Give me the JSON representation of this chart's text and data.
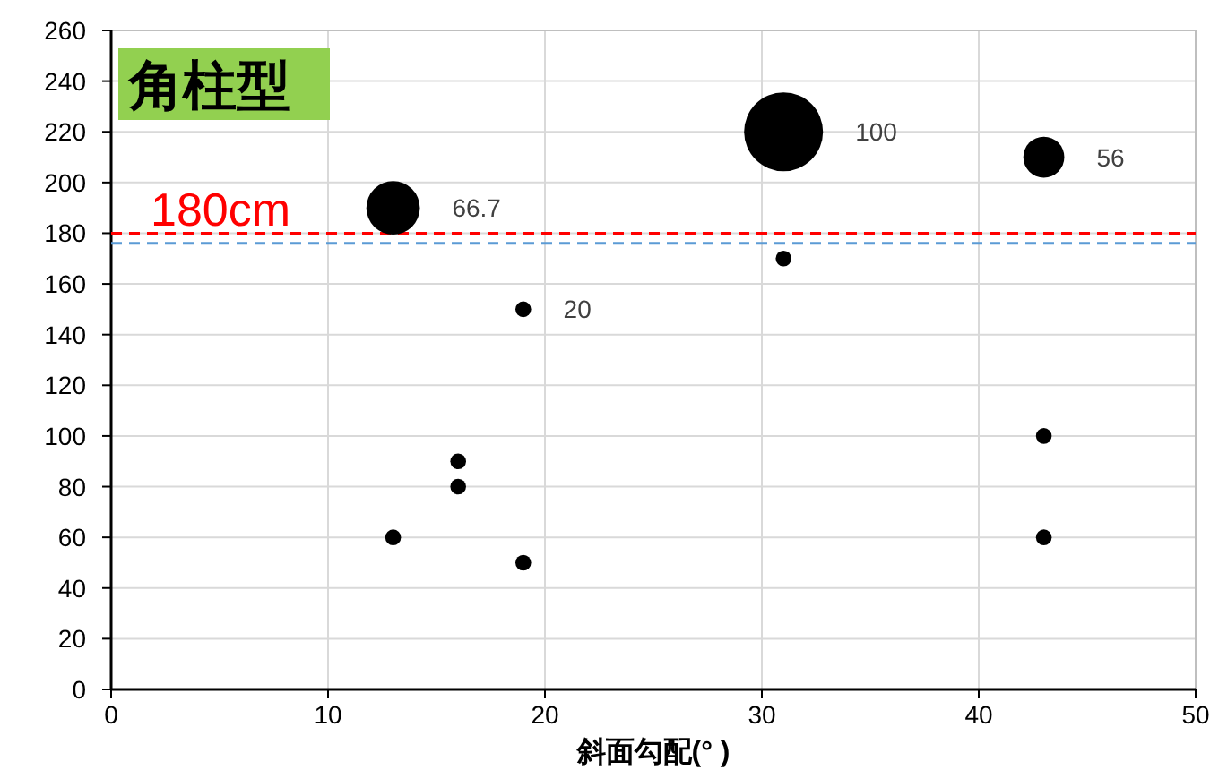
{
  "chart_data": {
    "type": "bubble",
    "title": "角柱型",
    "xlabel": "斜面勾配(°  )",
    "x": [
      13,
      13,
      16,
      16,
      19,
      19,
      31,
      31,
      43,
      43,
      43
    ],
    "values": [
      190,
      60,
      90,
      80,
      150,
      50,
      220,
      170,
      210,
      100,
      60
    ],
    "sizes": [
      0.46,
      0.04,
      0.04,
      0.04,
      0.04,
      0.04,
      1,
      0.04,
      0.27,
      0.04,
      0.04
    ],
    "annotations": [
      {
        "text": "66.7",
        "x": 13,
        "y": 190
      },
      {
        "text": "20",
        "x": 19,
        "y": 150
      },
      {
        "text": "100",
        "x": 31,
        "y": 220
      },
      {
        "text": "56",
        "x": 43,
        "y": 210
      }
    ],
    "color": "#000000",
    "xlim": [
      0,
      50
    ],
    "xticks": [
      0,
      10,
      20,
      30,
      40,
      50
    ],
    "ylim": [
      0,
      260
    ],
    "yticks": [
      0,
      20,
      40,
      60,
      80,
      100,
      120,
      140,
      160,
      180,
      200,
      220,
      240,
      260
    ],
    "grid": true,
    "legend": false,
    "marker": "circle",
    "ref_lines": [
      {
        "axis": "y",
        "value": 180,
        "label": "180cm",
        "color": "#ff0000",
        "line_style": "dashed"
      },
      {
        "axis": "y",
        "value": 176,
        "color": "#5b9bd5",
        "line_style": "dashed"
      }
    ]
  }
}
